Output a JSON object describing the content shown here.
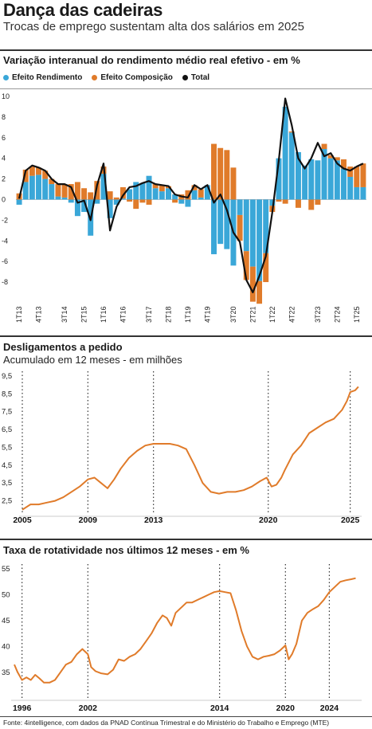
{
  "header": {
    "title": "Dança das cadeiras",
    "subtitle": "Trocas de emprego sustentam alta dos salários em 2025"
  },
  "colors": {
    "rendimento": "#3aa7d8",
    "composicao": "#e07b2a",
    "total": "#111111",
    "line": "#e07b2a"
  },
  "source": "Fonte: 4intelligence, com dados da PNAD Contínua Trimestral e do Ministério do Trabalho e Emprego (MTE)",
  "chart_data": [
    {
      "type": "bar",
      "title": "Variação interanual do rendimento médio real efetivo - em %",
      "legend": [
        "Efeito Rendimento",
        "Efeito Composição",
        "Total"
      ],
      "y_ticks": [
        "10",
        "8",
        "6",
        "4",
        "2",
        "0",
        "-2",
        "-4",
        "-6",
        "-8"
      ],
      "ylim": [
        -9,
        10
      ],
      "x_tick_labels": [
        "1T13",
        "4T13",
        "3T14",
        "2T15",
        "1T16",
        "4T16",
        "3T17",
        "2T18",
        "1T19",
        "4T19",
        "3T20",
        "2T21",
        "1T22",
        "4T22",
        "3T23",
        "2T24",
        "1T25"
      ],
      "series": [
        {
          "name": "Efeito Rendimento",
          "values": [
            -0.5,
            1.7,
            2.3,
            2.4,
            2.0,
            1.5,
            0.3,
            0.2,
            -0.3,
            -1.6,
            -1.2,
            -3.5,
            -0.4,
            2.5,
            -1.8,
            -0.5,
            0.1,
            1.0,
            1.7,
            1.6,
            2.3,
            1.1,
            0.8,
            1.1,
            0.5,
            -0.4,
            -0.7,
            0.9,
            0.2,
            1.4,
            -5.3,
            -4.3,
            -4.8,
            -6.4,
            -1.5,
            -5.0,
            -6.5,
            -7.9,
            -5.2,
            -0.6,
            4.0,
            9.0,
            6.5,
            4.6,
            3.3,
            3.9,
            3.8,
            4.9,
            4.0,
            3.8,
            3.0,
            2.2,
            1.2,
            1.2
          ]
        },
        {
          "name": "Efeito Composição",
          "values": [
            0.6,
            1.2,
            0.9,
            0.7,
            0.8,
            0.5,
            1.2,
            1.3,
            1.5,
            1.7,
            1.1,
            0.7,
            1.8,
            0.7,
            0.8,
            0.2,
            1.1,
            -0.2,
            -0.9,
            -0.3,
            -0.5,
            0.4,
            0.6,
            0.2,
            -0.3,
            0.5,
            0.9,
            0.5,
            0.8,
            0.0,
            5.4,
            5.0,
            4.8,
            3.1,
            -2.5,
            -2.8,
            -3.4,
            -2.2,
            -2.8,
            -0.6,
            -0.2,
            -0.4,
            0.1,
            -0.8,
            0.0,
            -1.0,
            -0.5,
            0.5,
            0.3,
            0.3,
            0.9,
            1.0,
            2.0,
            2.3
          ]
        },
        {
          "name": "Total",
          "values": [
            0.1,
            2.8,
            3.3,
            3.1,
            2.8,
            2.0,
            1.5,
            1.5,
            1.2,
            -0.3,
            -0.1,
            -2.0,
            1.4,
            3.5,
            -3.0,
            -0.7,
            0.4,
            1.2,
            1.3,
            1.6,
            1.8,
            1.5,
            1.4,
            1.3,
            0.5,
            0.3,
            0.2,
            1.4,
            1.0,
            1.4,
            -0.3,
            0.5,
            -1.0,
            -3.2,
            -4.1,
            -7.8,
            -9.0,
            -7.4,
            -5.5,
            -1.2,
            3.8,
            9.8,
            7.2,
            4.0,
            3.0,
            4.0,
            5.5,
            4.2,
            4.5,
            3.5,
            3.0,
            2.8,
            3.2,
            3.5
          ]
        }
      ]
    },
    {
      "type": "line",
      "title": "Desligamentos a pedido",
      "subtitle": "Acumulado em 12 meses - em milhões",
      "y_ticks": [
        "9,5",
        "8,5",
        "7,5",
        "6,5",
        "5,5",
        "4,5",
        "3,5",
        "2,5"
      ],
      "ylim": [
        1.9,
        9.5
      ],
      "x_ticks": [
        {
          "year": 2005,
          "label": "2005"
        },
        {
          "year": 2009,
          "label": "2009"
        },
        {
          "year": 2013,
          "label": "2013"
        },
        {
          "year": 2020,
          "label": "2020"
        },
        {
          "year": 2025,
          "label": "2025"
        }
      ],
      "xlim": [
        2005,
        2025.6
      ],
      "series": [
        {
          "name": "",
          "x": [
            2005.0,
            2005.5,
            2006.0,
            2006.5,
            2007.0,
            2007.5,
            2008.0,
            2008.5,
            2009.0,
            2009.4,
            2009.8,
            2010.2,
            2010.6,
            2011.0,
            2011.5,
            2012.0,
            2012.5,
            2013.0,
            2013.5,
            2014.0,
            2014.5,
            2015.0,
            2015.5,
            2016.0,
            2016.5,
            2017.0,
            2017.5,
            2018.0,
            2018.5,
            2019.0,
            2019.5,
            2019.9,
            2020.2,
            2020.5,
            2020.8,
            2021.0,
            2021.5,
            2022.0,
            2022.5,
            2023.0,
            2023.5,
            2024.0,
            2024.5,
            2024.8,
            2025.0,
            2025.3,
            2025.5
          ],
          "values": [
            2.0,
            2.3,
            2.3,
            2.4,
            2.5,
            2.7,
            3.0,
            3.3,
            3.7,
            3.8,
            3.5,
            3.2,
            3.7,
            4.3,
            4.9,
            5.3,
            5.6,
            5.7,
            5.7,
            5.7,
            5.6,
            5.4,
            4.5,
            3.5,
            3.0,
            2.9,
            3.0,
            3.0,
            3.1,
            3.3,
            3.6,
            3.8,
            3.3,
            3.4,
            3.8,
            4.2,
            5.1,
            5.6,
            6.3,
            6.6,
            6.9,
            7.1,
            7.6,
            8.1,
            8.6,
            8.7,
            8.9
          ]
        }
      ]
    },
    {
      "type": "line",
      "title": "Taxa de rotatividade nos últimos 12 meses - em %",
      "y_ticks": [
        "55",
        "50",
        "45",
        "40",
        "35"
      ],
      "ylim": [
        30.5,
        55
      ],
      "x_ticks": [
        {
          "year": 1996,
          "label": "1996"
        },
        {
          "year": 2002,
          "label": "2002"
        },
        {
          "year": 2014,
          "label": "2014"
        },
        {
          "year": 2020,
          "label": "2020"
        },
        {
          "year": 2024,
          "label": "2024"
        }
      ],
      "xlim": [
        1995.3,
        2026.8
      ],
      "series": [
        {
          "name": "",
          "x": [
            1995.3,
            1995.6,
            1996.0,
            1996.4,
            1996.8,
            1997.2,
            1997.6,
            1998.0,
            1998.5,
            1999.0,
            1999.5,
            2000.0,
            2000.5,
            2001.0,
            2001.5,
            2002.0,
            2002.3,
            2002.7,
            2003.2,
            2003.8,
            2004.3,
            2004.8,
            2005.3,
            2005.8,
            2006.3,
            2006.8,
            2007.3,
            2007.8,
            2008.3,
            2008.8,
            2009.2,
            2009.6,
            2010.0,
            2010.5,
            2011.0,
            2011.5,
            2012.0,
            2012.5,
            2013.0,
            2013.5,
            2014.0,
            2014.5,
            2015.0,
            2015.5,
            2016.0,
            2016.5,
            2017.0,
            2017.5,
            2018.0,
            2018.5,
            2019.0,
            2019.5,
            2020.0,
            2020.3,
            2020.6,
            2021.0,
            2021.5,
            2022.0,
            2022.5,
            2023.0,
            2023.5,
            2024.0,
            2024.5,
            2025.0,
            2025.5,
            2026.0,
            2026.4
          ],
          "values": [
            36.5,
            35.0,
            33.5,
            34.0,
            33.5,
            34.5,
            33.8,
            33.0,
            33.0,
            33.5,
            35.0,
            36.5,
            37.0,
            38.5,
            39.5,
            38.5,
            36.0,
            35.2,
            34.8,
            34.6,
            35.5,
            37.5,
            37.2,
            38.0,
            38.5,
            39.5,
            41.0,
            42.5,
            44.5,
            46.0,
            45.5,
            44.0,
            46.5,
            47.5,
            48.5,
            48.5,
            49.0,
            49.5,
            50.0,
            50.5,
            50.7,
            50.5,
            50.3,
            47.0,
            43.0,
            40.0,
            38.0,
            37.5,
            38.0,
            38.2,
            38.5,
            39.2,
            40.2,
            37.5,
            38.5,
            40.5,
            45.0,
            46.5,
            47.2,
            47.8,
            49.0,
            50.5,
            51.5,
            52.5,
            52.8,
            53.0,
            53.2
          ]
        }
      ]
    }
  ]
}
